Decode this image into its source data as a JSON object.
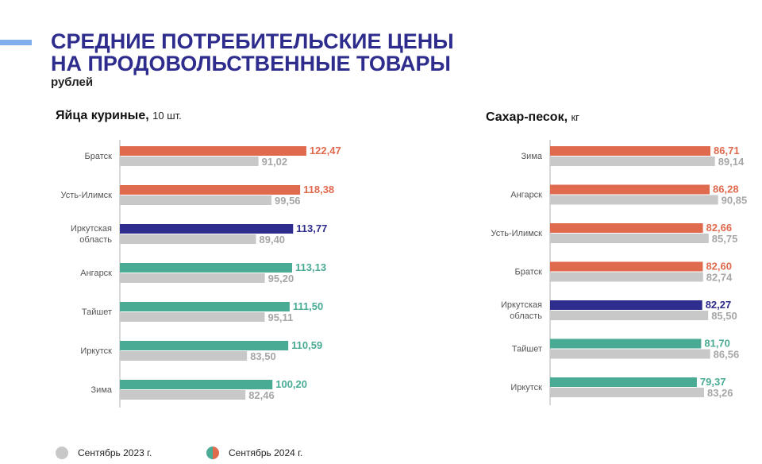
{
  "header": {
    "title_line1": "СРЕДНИЕ ПОТРЕБИТЕЛЬСКИЕ ЦЕНЫ",
    "title_line2": "НА ПРОДОВОЛЬСТВЕННЫЕ ТОВАРЫ",
    "unit": "рублей"
  },
  "legend": {
    "prev": "Сентябрь 2023 г.",
    "curr": "Сентябрь 2024 г."
  },
  "colors": {
    "title": "#2e2c8c",
    "above": "#e06a4e",
    "region": "#2e2c8c",
    "below": "#4aab95",
    "prev": "#c8c8c8",
    "prev_label": "#a6a6a6",
    "axis": "#b0b0b0",
    "category": "#555555"
  },
  "chart_data": [
    {
      "type": "bar",
      "title": "Яйца куриные,",
      "subtitle": "10 шт.",
      "orientation": "horizontal",
      "xlim": [
        0,
        135
      ],
      "categories": [
        [
          "Братск"
        ],
        [
          "Усть-Илимск"
        ],
        [
          "Иркутская",
          "область"
        ],
        [
          "Ангарск"
        ],
        [
          "Тайшет"
        ],
        [
          "Иркутск"
        ],
        [
          "Зима"
        ]
      ],
      "series": [
        {
          "name": "Сентябрь 2024 г.",
          "values": [
            122.47,
            118.38,
            113.77,
            113.13,
            111.5,
            110.59,
            100.2
          ],
          "labels": [
            "122,47",
            "118,38",
            "113,77",
            "113,13",
            "111,50",
            "110,59",
            "100,20"
          ],
          "status": [
            "above",
            "above",
            "region",
            "below",
            "below",
            "below",
            "below"
          ]
        },
        {
          "name": "Сентябрь 2023 г.",
          "values": [
            91.02,
            99.56,
            89.4,
            95.2,
            95.11,
            83.5,
            82.46
          ],
          "labels": [
            "91,02",
            "99,56",
            "89,40",
            "95,20",
            "95,11",
            "83,50",
            "82,46"
          ]
        }
      ]
    },
    {
      "type": "bar",
      "title": "Сахар-песок,",
      "subtitle": "кг",
      "orientation": "horizontal",
      "xlim": [
        0,
        100
      ],
      "categories": [
        [
          "Зима"
        ],
        [
          "Ангарск"
        ],
        [
          "Усть-Илимск"
        ],
        [
          "Братск"
        ],
        [
          "Иркутская",
          "область"
        ],
        [
          "Тайшет"
        ],
        [
          "Иркутск"
        ]
      ],
      "series": [
        {
          "name": "Сентябрь 2024 г.",
          "values": [
            86.71,
            86.28,
            82.66,
            82.6,
            82.27,
            81.7,
            79.37
          ],
          "labels": [
            "86,71",
            "86,28",
            "82,66",
            "82,60",
            "82,27",
            "81,70",
            "79,37"
          ],
          "status": [
            "above",
            "above",
            "above",
            "above",
            "region",
            "below",
            "below"
          ]
        },
        {
          "name": "Сентябрь 2023 г.",
          "values": [
            89.14,
            90.85,
            85.75,
            82.74,
            85.5,
            86.56,
            83.26
          ],
          "labels": [
            "89,14",
            "90,85",
            "85,75",
            "82,74",
            "85,50",
            "86,56",
            "83,26"
          ]
        }
      ]
    }
  ]
}
